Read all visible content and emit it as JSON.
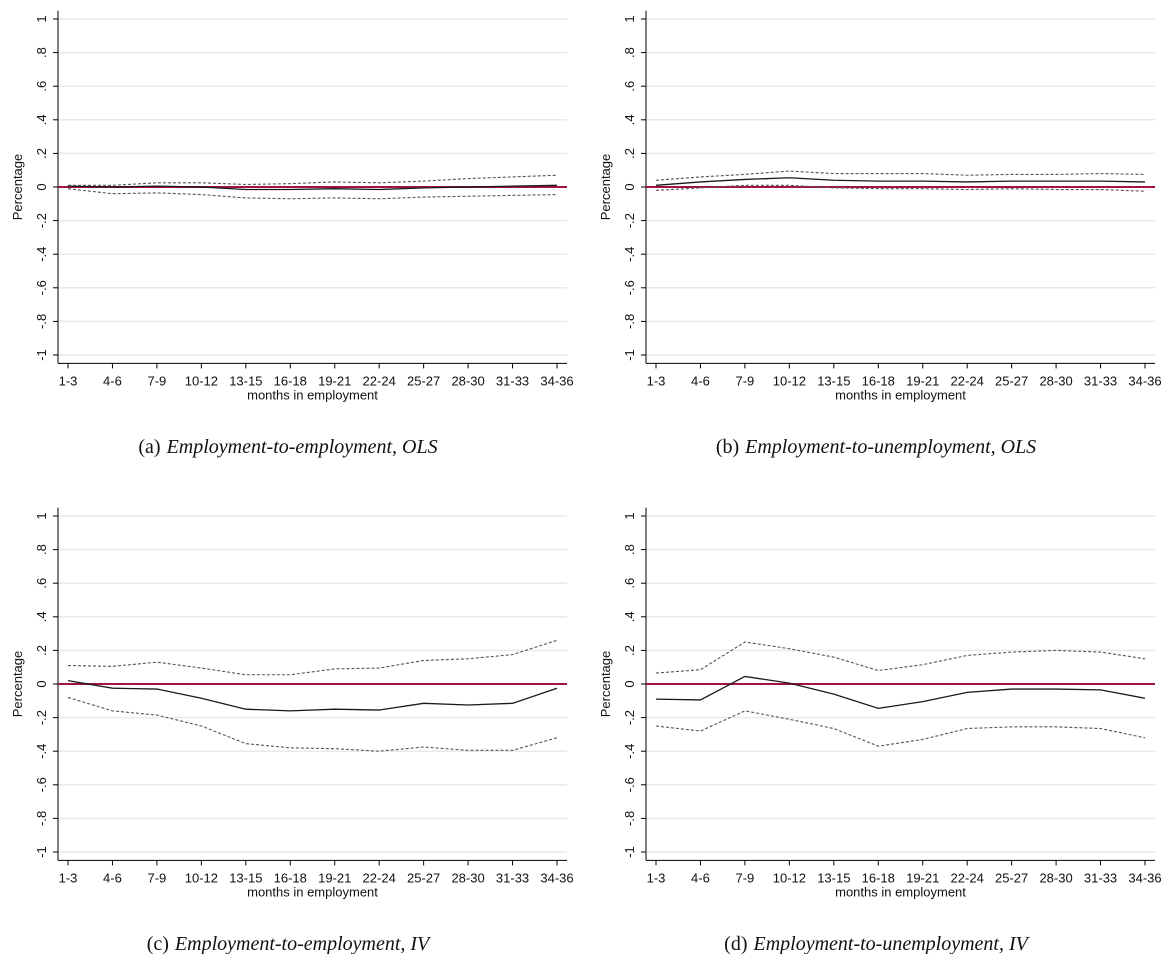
{
  "chart_data": [
    {
      "type": "line",
      "caption_label": "(a)",
      "caption": "Employment-to-employment, OLS",
      "y_label": "Percentage",
      "x_label": "months in employment",
      "categories": [
        "1-3",
        "4-6",
        "7-9",
        "10-12",
        "13-15",
        "16-18",
        "19-21",
        "22-24",
        "25-27",
        "28-30",
        "31-33",
        "34-36"
      ],
      "series": [
        {
          "color": "#1a1a1a",
          "dash": "solid",
          "values": [
            0.005,
            0.0,
            0.005,
            0.0,
            -0.015,
            -0.015,
            -0.01,
            -0.015,
            -0.005,
            0.0,
            0.005,
            0.01
          ]
        },
        {
          "color": "#555555",
          "dash": "dashed",
          "values": [
            0.01,
            0.01,
            0.025,
            0.025,
            0.015,
            0.02,
            0.03,
            0.025,
            0.035,
            0.05,
            0.06,
            0.07
          ]
        },
        {
          "color": "#555555",
          "dash": "dashed",
          "values": [
            -0.01,
            -0.04,
            -0.035,
            -0.045,
            -0.065,
            -0.07,
            -0.065,
            -0.07,
            -0.06,
            -0.055,
            -0.05,
            -0.045
          ]
        }
      ],
      "ylim": [
        -1.05,
        1.05
      ],
      "yticks": [
        -1,
        {
          "value": -0.8,
          "label": "-.8"
        },
        {
          "value": -0.6,
          "label": "-.6"
        },
        {
          "value": -0.4,
          "label": "-.4"
        },
        {
          "value": -0.2,
          "label": "-.2"
        },
        0,
        {
          "value": 0.2,
          "label": ".2"
        },
        {
          "value": 0.4,
          "label": ".4"
        },
        {
          "value": 0.6,
          "label": ".6"
        },
        {
          "value": 0.8,
          "label": ".8"
        },
        1
      ],
      "grid": true,
      "reference_line": {
        "value": 0,
        "color": "#a0153e"
      }
    },
    {
      "type": "line",
      "caption_label": "(b)",
      "caption": "Employment-to-unemployment, OLS",
      "y_label": "Percentage",
      "x_label": "months in employment",
      "categories": [
        "1-3",
        "4-6",
        "7-9",
        "10-12",
        "13-15",
        "16-18",
        "19-21",
        "22-24",
        "25-27",
        "28-30",
        "31-33",
        "34-36"
      ],
      "series": [
        {
          "color": "#1a1a1a",
          "dash": "solid",
          "values": [
            0.01,
            0.03,
            0.045,
            0.055,
            0.04,
            0.035,
            0.035,
            0.03,
            0.035,
            0.035,
            0.035,
            0.03
          ]
        },
        {
          "color": "#555555",
          "dash": "dashed",
          "values": [
            0.04,
            0.06,
            0.075,
            0.095,
            0.08,
            0.08,
            0.08,
            0.07,
            0.075,
            0.075,
            0.08,
            0.075
          ]
        },
        {
          "color": "#555555",
          "dash": "dashed",
          "values": [
            -0.02,
            -0.005,
            0.01,
            0.01,
            -0.005,
            -0.01,
            -0.01,
            -0.015,
            -0.01,
            -0.015,
            -0.015,
            -0.025
          ]
        }
      ],
      "ylim": [
        -1.05,
        1.05
      ],
      "yticks": [
        -1,
        {
          "value": -0.8,
          "label": "-.8"
        },
        {
          "value": -0.6,
          "label": "-.6"
        },
        {
          "value": -0.4,
          "label": "-.4"
        },
        {
          "value": -0.2,
          "label": "-.2"
        },
        0,
        {
          "value": 0.2,
          "label": ".2"
        },
        {
          "value": 0.4,
          "label": ".4"
        },
        {
          "value": 0.6,
          "label": ".6"
        },
        {
          "value": 0.8,
          "label": ".8"
        },
        1
      ],
      "grid": true,
      "reference_line": {
        "value": 0,
        "color": "#a0153e"
      }
    },
    {
      "type": "line",
      "caption_label": "(c)",
      "caption": "Employment-to-employment, IV",
      "y_label": "Percentage",
      "x_label": "months in employment",
      "categories": [
        "1-3",
        "4-6",
        "7-9",
        "10-12",
        "13-15",
        "16-18",
        "19-21",
        "22-24",
        "25-27",
        "28-30",
        "31-33",
        "34-36"
      ],
      "series": [
        {
          "color": "#1a1a1a",
          "dash": "solid",
          "values": [
            0.02,
            -0.025,
            -0.03,
            -0.085,
            -0.15,
            -0.16,
            -0.15,
            -0.155,
            -0.115,
            -0.125,
            -0.115,
            -0.025
          ]
        },
        {
          "color": "#555555",
          "dash": "dashed",
          "values": [
            0.11,
            0.105,
            0.13,
            0.095,
            0.055,
            0.055,
            0.09,
            0.095,
            0.14,
            0.15,
            0.175,
            0.26
          ]
        },
        {
          "color": "#555555",
          "dash": "dashed",
          "values": [
            -0.08,
            -0.16,
            -0.185,
            -0.25,
            -0.355,
            -0.38,
            -0.385,
            -0.4,
            -0.375,
            -0.395,
            -0.395,
            -0.32
          ]
        }
      ],
      "ylim": [
        -1.05,
        1.05
      ],
      "yticks": [
        -1,
        {
          "value": -0.8,
          "label": "-.8"
        },
        {
          "value": -0.6,
          "label": "-.6"
        },
        {
          "value": -0.4,
          "label": "-.4"
        },
        {
          "value": -0.2,
          "label": "-.2"
        },
        0,
        {
          "value": 0.2,
          "label": ".2"
        },
        {
          "value": 0.4,
          "label": ".4"
        },
        {
          "value": 0.6,
          "label": ".6"
        },
        {
          "value": 0.8,
          "label": ".8"
        },
        1
      ],
      "grid": true,
      "reference_line": {
        "value": 0,
        "color": "#a0153e"
      }
    },
    {
      "type": "line",
      "caption_label": "(d)",
      "caption": "Employment-to-unemployment, IV",
      "y_label": "Percentage",
      "x_label": "months in employment",
      "categories": [
        "1-3",
        "4-6",
        "7-9",
        "10-12",
        "13-15",
        "16-18",
        "19-21",
        "22-24",
        "25-27",
        "28-30",
        "31-33",
        "34-36"
      ],
      "series": [
        {
          "color": "#1a1a1a",
          "dash": "solid",
          "values": [
            -0.09,
            -0.095,
            0.045,
            0.005,
            -0.06,
            -0.145,
            -0.105,
            -0.05,
            -0.03,
            -0.03,
            -0.035,
            -0.085
          ]
        },
        {
          "color": "#555555",
          "dash": "dashed",
          "values": [
            0.065,
            0.085,
            0.25,
            0.21,
            0.16,
            0.08,
            0.115,
            0.17,
            0.19,
            0.2,
            0.19,
            0.15
          ]
        },
        {
          "color": "#555555",
          "dash": "dashed",
          "values": [
            -0.25,
            -0.28,
            -0.16,
            -0.21,
            -0.265,
            -0.37,
            -0.33,
            -0.265,
            -0.255,
            -0.255,
            -0.265,
            -0.32
          ]
        }
      ],
      "ylim": [
        -1.05,
        1.05
      ],
      "yticks": [
        -1,
        {
          "value": -0.8,
          "label": "-.8"
        },
        {
          "value": -0.6,
          "label": "-.6"
        },
        {
          "value": -0.4,
          "label": "-.4"
        },
        {
          "value": -0.2,
          "label": "-.2"
        },
        0,
        {
          "value": 0.2,
          "label": ".2"
        },
        {
          "value": 0.4,
          "label": ".4"
        },
        {
          "value": 0.6,
          "label": ".6"
        },
        {
          "value": 0.8,
          "label": ".8"
        },
        1
      ],
      "grid": true,
      "reference_line": {
        "value": 0,
        "color": "#a0153e"
      }
    }
  ]
}
